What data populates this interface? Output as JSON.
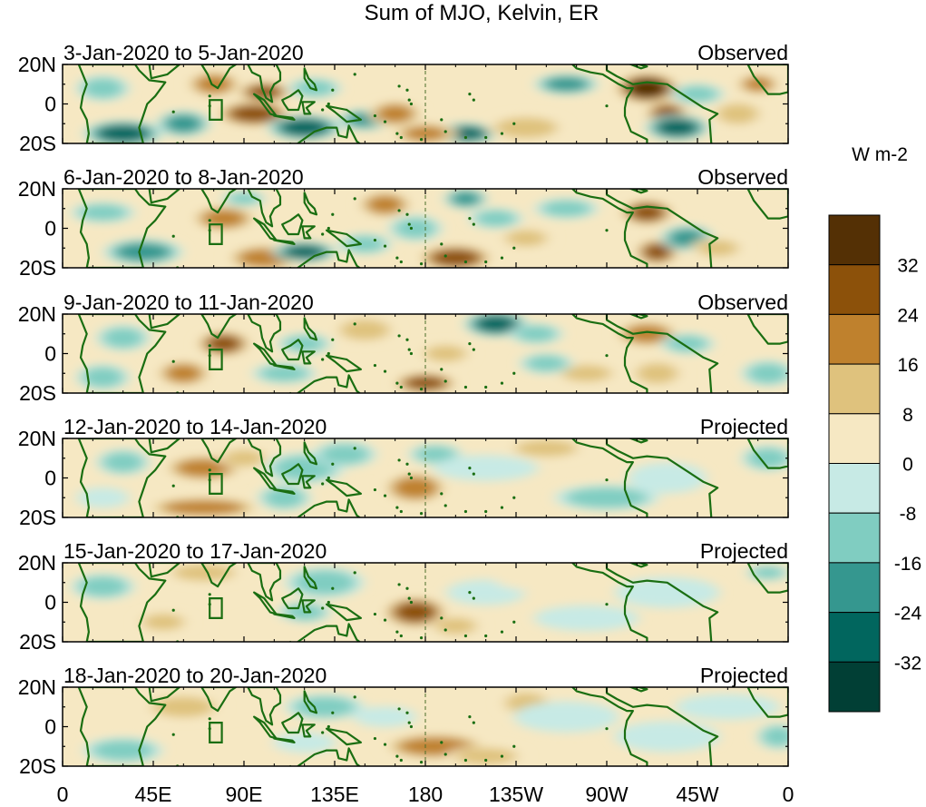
{
  "chart_data": {
    "type": "heatmap",
    "title": "Sum of MJO, Kelvin, ER",
    "colorbar": {
      "label": "W m-2",
      "tick_labels": [
        "32",
        "24",
        "16",
        "8",
        "0",
        "-8",
        "-16",
        "-24",
        "-32"
      ],
      "levels": [
        -32,
        -24,
        -16,
        -8,
        0,
        8,
        16,
        24,
        32
      ],
      "colors": [
        "#013f35",
        "#01665e",
        "#35978f",
        "#80cdc1",
        "#c7eae5",
        "#f6e8c3",
        "#dfc27d",
        "#bf812d",
        "#8c510a",
        "#543005"
      ]
    },
    "x_axis": {
      "tick_labels": [
        "0",
        "45E",
        "90E",
        "135E",
        "180",
        "135W",
        "90W",
        "45W",
        "0"
      ],
      "range_deg_east": [
        0,
        360
      ]
    },
    "y_axis": {
      "tick_labels": [
        "20N",
        "0",
        "20S"
      ],
      "range_deg": [
        -20,
        20
      ]
    },
    "reference_line_lon": 180,
    "panels": [
      {
        "period": "3-Jan-2020 to 5-Jan-2020",
        "status": "Observed",
        "blobs": [
          [
            95,
            -5,
            14,
            5,
            26
          ],
          [
            120,
            -12,
            14,
            5,
            -30
          ],
          [
            150,
            -8,
            10,
            4,
            -24
          ],
          [
            165,
            -5,
            10,
            5,
            22
          ],
          [
            200,
            -15,
            12,
            4,
            -26
          ],
          [
            75,
            10,
            10,
            5,
            20
          ],
          [
            100,
            6,
            10,
            4,
            28
          ],
          [
            290,
            8,
            12,
            6,
            34
          ],
          [
            300,
            -5,
            8,
            5,
            30
          ],
          [
            305,
            -12,
            12,
            5,
            -32
          ],
          [
            315,
            5,
            10,
            4,
            -16
          ],
          [
            250,
            10,
            12,
            4,
            -22
          ],
          [
            30,
            -15,
            15,
            5,
            -26
          ],
          [
            20,
            8,
            10,
            5,
            -16
          ],
          [
            60,
            -10,
            10,
            5,
            -20
          ],
          [
            125,
            8,
            10,
            4,
            -12
          ],
          [
            335,
            -5,
            10,
            5,
            12
          ],
          [
            345,
            10,
            8,
            4,
            18
          ],
          [
            180,
            -15,
            12,
            4,
            20
          ],
          [
            230,
            -12,
            15,
            5,
            10
          ]
        ]
      },
      {
        "period": "6-Jan-2020 to 8-Jan-2020",
        "status": "Observed",
        "blobs": [
          [
            80,
            5,
            12,
            5,
            24
          ],
          [
            100,
            -15,
            14,
            5,
            22
          ],
          [
            120,
            -12,
            12,
            4,
            -28
          ],
          [
            150,
            -8,
            10,
            4,
            -16
          ],
          [
            175,
            0,
            10,
            5,
            -10
          ],
          [
            195,
            -15,
            14,
            5,
            28
          ],
          [
            215,
            5,
            10,
            4,
            -10
          ],
          [
            230,
            -5,
            10,
            4,
            16
          ],
          [
            250,
            10,
            12,
            4,
            -14
          ],
          [
            290,
            8,
            10,
            5,
            30
          ],
          [
            295,
            -12,
            8,
            5,
            26
          ],
          [
            310,
            -5,
            10,
            5,
            -22
          ],
          [
            325,
            -10,
            10,
            4,
            12
          ],
          [
            40,
            -12,
            15,
            5,
            -20
          ],
          [
            20,
            8,
            12,
            4,
            -16
          ],
          [
            200,
            15,
            8,
            4,
            -22
          ],
          [
            160,
            12,
            10,
            5,
            20
          ],
          [
            90,
            15,
            8,
            3,
            -12
          ]
        ]
      },
      {
        "period": "9-Jan-2020 to 11-Jan-2020",
        "status": "Observed",
        "blobs": [
          [
            80,
            5,
            10,
            5,
            28
          ],
          [
            60,
            -10,
            10,
            5,
            22
          ],
          [
            110,
            -10,
            12,
            4,
            -16
          ],
          [
            120,
            5,
            10,
            4,
            -14
          ],
          [
            150,
            12,
            12,
            5,
            16
          ],
          [
            180,
            -15,
            12,
            4,
            26
          ],
          [
            215,
            15,
            12,
            5,
            -32
          ],
          [
            235,
            10,
            10,
            4,
            -16
          ],
          [
            260,
            -10,
            12,
            4,
            12
          ],
          [
            290,
            10,
            12,
            5,
            20
          ],
          [
            295,
            -10,
            10,
            5,
            10
          ],
          [
            310,
            5,
            10,
            4,
            -12
          ],
          [
            240,
            -5,
            10,
            4,
            -10
          ],
          [
            20,
            -12,
            10,
            5,
            -14
          ],
          [
            30,
            8,
            10,
            5,
            -16
          ],
          [
            350,
            -10,
            10,
            5,
            -12
          ],
          [
            190,
            0,
            10,
            4,
            12
          ]
        ]
      },
      {
        "period": "12-Jan-2020 to 14-Jan-2020",
        "status": "Projected",
        "blobs": [
          [
            70,
            5,
            15,
            5,
            18
          ],
          [
            90,
            10,
            10,
            4,
            12
          ],
          [
            70,
            -15,
            22,
            4,
            20
          ],
          [
            120,
            5,
            15,
            6,
            -14
          ],
          [
            110,
            -10,
            10,
            5,
            -12
          ],
          [
            140,
            12,
            12,
            5,
            -12
          ],
          [
            175,
            -5,
            12,
            6,
            24
          ],
          [
            185,
            12,
            10,
            4,
            -10
          ],
          [
            210,
            5,
            20,
            5,
            -8
          ],
          [
            270,
            -10,
            20,
            5,
            -10
          ],
          [
            300,
            0,
            15,
            6,
            -8
          ],
          [
            30,
            8,
            10,
            5,
            -10
          ],
          [
            20,
            -10,
            10,
            4,
            -8
          ],
          [
            350,
            10,
            10,
            5,
            -10
          ],
          [
            240,
            15,
            15,
            4,
            10
          ]
        ]
      },
      {
        "period": "15-Jan-2020 to 17-Jan-2020",
        "status": "Projected",
        "blobs": [
          [
            70,
            15,
            15,
            4,
            12
          ],
          [
            50,
            -10,
            10,
            4,
            14
          ],
          [
            130,
            10,
            15,
            6,
            -12
          ],
          [
            120,
            -5,
            10,
            4,
            -10
          ],
          [
            175,
            -5,
            12,
            6,
            28
          ],
          [
            195,
            -12,
            10,
            4,
            14
          ],
          [
            210,
            5,
            15,
            5,
            -8
          ],
          [
            260,
            -8,
            20,
            5,
            -6
          ],
          [
            240,
            12,
            20,
            5,
            6
          ],
          [
            300,
            5,
            20,
            6,
            -6
          ],
          [
            20,
            8,
            12,
            5,
            -10
          ],
          [
            350,
            15,
            8,
            3,
            -10
          ],
          [
            100,
            -12,
            12,
            4,
            6
          ]
        ]
      },
      {
        "period": "18-Jan-2020 to 20-Jan-2020",
        "status": "Projected",
        "blobs": [
          [
            60,
            10,
            15,
            5,
            10
          ],
          [
            100,
            -10,
            15,
            4,
            8
          ],
          [
            130,
            10,
            15,
            5,
            -10
          ],
          [
            120,
            -8,
            12,
            4,
            -8
          ],
          [
            185,
            -10,
            20,
            5,
            24
          ],
          [
            210,
            -15,
            15,
            4,
            14
          ],
          [
            230,
            12,
            10,
            5,
            14
          ],
          [
            250,
            5,
            20,
            6,
            -8
          ],
          [
            300,
            -5,
            20,
            6,
            -8
          ],
          [
            330,
            10,
            20,
            5,
            -6
          ],
          [
            160,
            5,
            12,
            4,
            -8
          ],
          [
            30,
            -12,
            15,
            5,
            -10
          ],
          [
            20,
            5,
            10,
            5,
            8
          ],
          [
            355,
            -5,
            8,
            5,
            -10
          ]
        ]
      }
    ]
  }
}
